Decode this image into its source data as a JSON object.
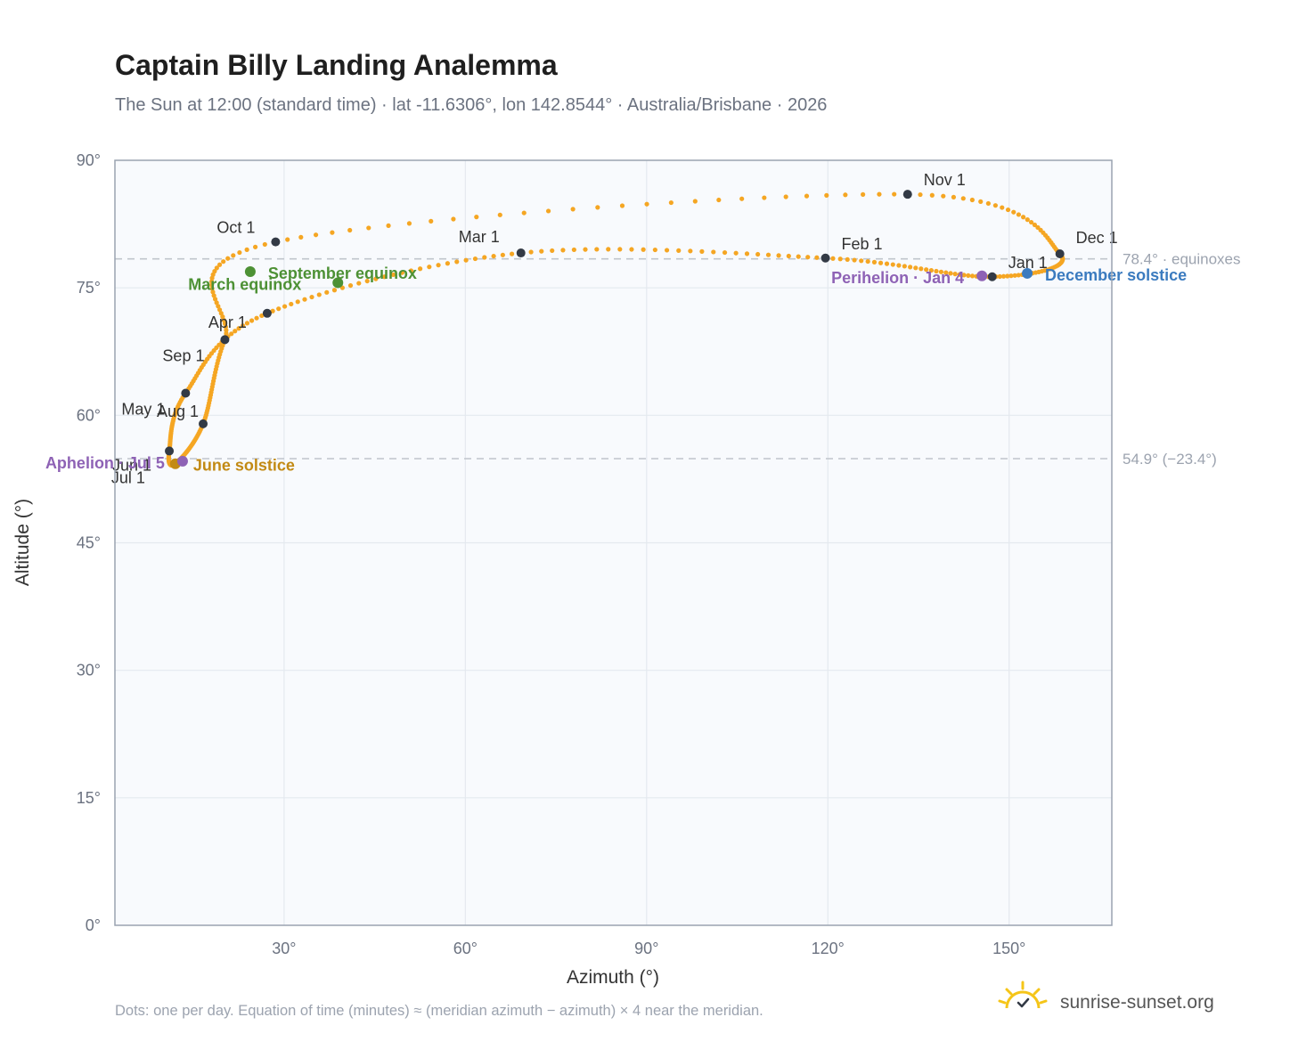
{
  "title": "Captain Billy Landing Analemma",
  "subtitle": "The Sun at 12:00 (standard time) · lat -11.6306°, lon 142.8544° · Australia/Brisbane · 2026",
  "footnote": "Dots: one per day. Equation of time (minutes) ≈ (meridian azimuth − azimuth) × 4 near the meridian.",
  "brand": {
    "name": "sunrise-sunset.org",
    "logo_icon": "sun-check-icon"
  },
  "colors": {
    "curve": "#f5a623",
    "plot_bg": "#f8fafd",
    "grid": "#e4e9ef",
    "frame": "#9aa3b0",
    "marker": "#333a45",
    "equinox": "#4d9135",
    "solstice_june": "#c28a14",
    "solstice_december": "#3b7bbf",
    "apsis": "#8e62b5",
    "refline": "#c0c5cc"
  },
  "chart_data": {
    "type": "scatter",
    "xlabel": "Azimuth (°)",
    "ylabel": "Altitude (°)",
    "xlim": [
      2,
      167
    ],
    "ylim": [
      0,
      90
    ],
    "xticks": [
      {
        "value": 30,
        "label": "30°"
      },
      {
        "value": 60,
        "label": "60°"
      },
      {
        "value": 90,
        "label": "90°"
      },
      {
        "value": 120,
        "label": "120°"
      },
      {
        "value": 150,
        "label": "150°"
      }
    ],
    "yticks": [
      {
        "value": 0,
        "label": "0°"
      },
      {
        "value": 15,
        "label": "15°"
      },
      {
        "value": 30,
        "label": "30°"
      },
      {
        "value": 45,
        "label": "45°"
      },
      {
        "value": 60,
        "label": "60°"
      },
      {
        "value": 75,
        "label": "75°"
      },
      {
        "value": 90,
        "label": "90°"
      }
    ],
    "grid": true,
    "note": "one dot per day",
    "reference_lines": [
      {
        "y": 78.4,
        "label": "78.4° · equinoxes"
      },
      {
        "y": 54.9,
        "label": "54.9° (−23.4°)"
      }
    ],
    "months": [
      {
        "label": "Jan 1",
        "az": 147.2,
        "alt": 76.3
      },
      {
        "label": "Feb 1",
        "az": 119.6,
        "alt": 78.5
      },
      {
        "label": "Mar 1",
        "az": 69.2,
        "alt": 79.1
      },
      {
        "label": "Apr 1",
        "az": 27.2,
        "alt": 72.0
      },
      {
        "label": "May 1",
        "az": 13.7,
        "alt": 62.6
      },
      {
        "label": "Jun 1",
        "az": 11.0,
        "alt": 55.8
      },
      {
        "label": "Jul 1",
        "az": 12.0,
        "alt": 54.3
      },
      {
        "label": "Aug 1",
        "az": 16.6,
        "alt": 59.0
      },
      {
        "label": "Sep 1",
        "az": 20.2,
        "alt": 68.9
      },
      {
        "label": "Oct 1",
        "az": 28.6,
        "alt": 80.4
      },
      {
        "label": "Nov 1",
        "az": 133.2,
        "alt": 86.0
      },
      {
        "label": "Dec 1",
        "az": 158.4,
        "alt": 79.0
      }
    ],
    "events": [
      {
        "label": "March equinox",
        "az": 38.9,
        "alt": 75.6,
        "kind": "equinox"
      },
      {
        "label": "September equinox",
        "az": 24.4,
        "alt": 76.9,
        "kind": "equinox"
      },
      {
        "label": "June solstice",
        "az": 12.0,
        "alt": 54.3,
        "kind": "solstice_june"
      },
      {
        "label": "December solstice",
        "az": 153.0,
        "alt": 76.7,
        "kind": "solstice_december"
      },
      {
        "label": "Perihelion · Jan 4",
        "az": 145.5,
        "alt": 76.4,
        "kind": "apsis"
      },
      {
        "label": "Aphelion · Jul 5",
        "az": 13.2,
        "alt": 54.6,
        "kind": "apsis"
      }
    ]
  }
}
